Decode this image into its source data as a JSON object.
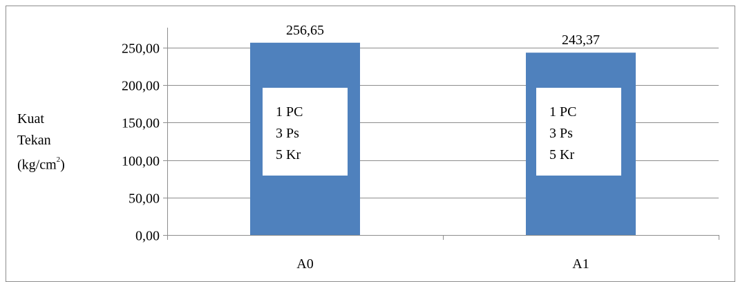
{
  "chart_data": {
    "type": "bar",
    "categories": [
      "A0",
      "A1"
    ],
    "values": [
      256.65,
      243.37
    ],
    "data_labels": [
      "256,65",
      "243,37"
    ],
    "ylabel": {
      "line1": "Kuat",
      "line2": "Tekan",
      "line3_pre": "(kg/cm",
      "line3_sup": "2",
      "line3_post": ")"
    },
    "ylim": [
      0,
      250
    ],
    "ytick_values": [
      0,
      50,
      100,
      150,
      200,
      250
    ],
    "ytick_labels": [
      "0,00",
      "50,00",
      "100,00",
      "150,00",
      "200,00",
      "250,00"
    ],
    "grid": true,
    "bar_color": "#4f81bd",
    "grid_color": "#8c8c8c",
    "annotations": [
      [
        "1 PC",
        "3 Ps",
        "5 Kr"
      ],
      [
        "1 PC",
        "3 Ps",
        "5 Kr"
      ]
    ]
  }
}
